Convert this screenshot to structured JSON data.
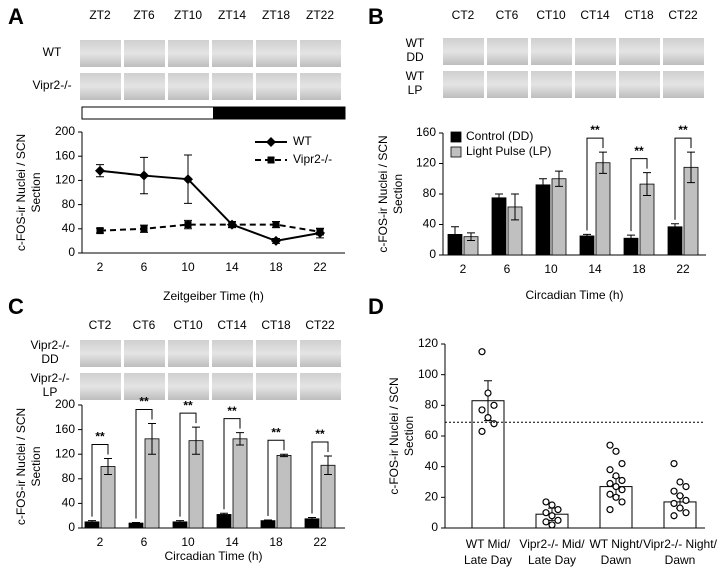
{
  "chart_data": [
    {
      "type": "line",
      "panel_label": "A",
      "image_columns": [
        "ZT2",
        "ZT6",
        "ZT10",
        "ZT14",
        "ZT18",
        "ZT22"
      ],
      "image_rows": [
        [
          "WT"
        ],
        [
          "Vipr2-/-"
        ]
      ],
      "categories": [
        "2",
        "6",
        "10",
        "14",
        "18",
        "22"
      ],
      "series": [
        {
          "name": "WT",
          "color": "#000000",
          "dashed": false,
          "marker": "diamond",
          "values": [
            136,
            128,
            122,
            47,
            20,
            33
          ],
          "errors": [
            10,
            30,
            40,
            5,
            4,
            8
          ]
        },
        {
          "name": "Vipr2-/-",
          "color": "#000000",
          "dashed": true,
          "marker": "square",
          "values": [
            37,
            40,
            47,
            47,
            47,
            35
          ],
          "errors": [
            4,
            6,
            7,
            4,
            5,
            5
          ]
        }
      ],
      "ylim": [
        0,
        200
      ],
      "yticks": [
        0,
        40,
        80,
        120,
        160,
        200
      ],
      "xlabel": "Zeitgeiber Time (h)",
      "ylabel": [
        "c-FOS-ir Nuclei / SCN",
        "Section"
      ],
      "legend": "upper right"
    },
    {
      "type": "bar",
      "panel_label": "B",
      "image_columns": [
        "CT2",
        "CT6",
        "CT10",
        "CT14",
        "CT18",
        "CT22"
      ],
      "image_rows": [
        [
          "WT",
          "DD"
        ],
        [
          "WT",
          "LP"
        ]
      ],
      "categories": [
        "2",
        "6",
        "10",
        "14",
        "18",
        "22"
      ],
      "series": [
        {
          "name": "Control (DD)",
          "color": "#000000",
          "values": [
            27,
            75,
            92,
            25,
            22,
            37
          ],
          "errors": [
            10,
            5,
            8,
            2,
            4,
            4
          ]
        },
        {
          "name": "Light Pulse (LP)",
          "color": "#c0c0c0",
          "values": [
            24,
            63,
            100,
            121,
            93,
            115
          ],
          "errors": [
            5,
            17,
            10,
            14,
            15,
            20
          ]
        }
      ],
      "significance": [
        null,
        null,
        null,
        "**",
        "**",
        "**"
      ],
      "ylim": [
        0,
        160
      ],
      "yticks": [
        0,
        40,
        80,
        120,
        160
      ],
      "xlabel": "Circadian Time (h)",
      "ylabel": [
        "c-FOS-ir Nuclei / SCN",
        "Section"
      ],
      "legend": "upper left"
    },
    {
      "type": "bar",
      "panel_label": "C",
      "image_columns": [
        "CT2",
        "CT6",
        "CT10",
        "CT14",
        "CT18",
        "CT22"
      ],
      "image_rows": [
        [
          "Vipr2-/-",
          "DD"
        ],
        [
          "Vipr2-/-",
          "LP"
        ]
      ],
      "categories": [
        "2",
        "6",
        "10",
        "14",
        "18",
        "22"
      ],
      "series": [
        {
          "color": "#000000",
          "values": [
            10,
            8,
            10,
            22,
            12,
            15
          ],
          "errors": [
            2,
            1,
            2,
            2,
            1,
            2
          ]
        },
        {
          "color": "#c0c0c0",
          "values": [
            100,
            145,
            142,
            145,
            118,
            102
          ],
          "errors": [
            13,
            25,
            22,
            10,
            2,
            15
          ]
        }
      ],
      "significance": [
        "**",
        "**",
        "**",
        "**",
        "**",
        "**"
      ],
      "ylim": [
        0,
        200
      ],
      "yticks": [
        0,
        40,
        80,
        120,
        160,
        200
      ],
      "xlabel": "Circadian Time (h)",
      "ylabel": [
        "c-FOS-ir Nuclei / SCN",
        "Section"
      ]
    },
    {
      "type": "dotbar",
      "panel_label": "D",
      "categories": [
        [
          "WT Mid/",
          "Late Day"
        ],
        [
          "Vipr2-/- Mid/",
          "Late Day"
        ],
        [
          "WT Night/",
          "Dawn"
        ],
        [
          "Vipr2-/- Night/",
          "Dawn"
        ]
      ],
      "color": "#ffffff",
      "values": [
        83,
        9,
        27,
        17
      ],
      "errors": [
        13,
        4,
        6,
        4
      ],
      "points": [
        [
          115,
          88,
          80,
          77,
          72,
          68,
          63
        ],
        [
          17,
          15,
          12,
          10,
          8,
          5,
          4,
          2
        ],
        [
          54,
          50,
          42,
          38,
          34,
          31,
          29,
          27,
          25,
          22,
          20,
          17,
          12
        ],
        [
          42,
          30,
          27,
          24,
          21,
          18,
          16,
          13,
          10,
          8
        ]
      ],
      "reference_line": 69,
      "ylim": [
        0,
        120
      ],
      "yticks": [
        0,
        20,
        40,
        60,
        80,
        100,
        120
      ],
      "ylabel": [
        "c-FOS-ir Nuclei / SCN",
        "Section"
      ]
    }
  ]
}
